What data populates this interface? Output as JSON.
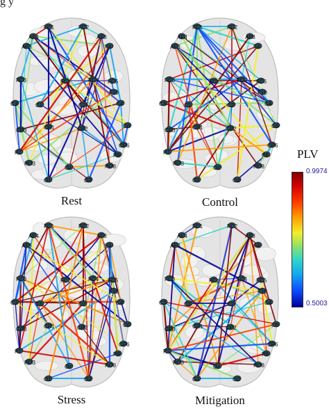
{
  "figure": {
    "top_caption_fragment": "g                                                                    y",
    "panels": [
      {
        "id": "rest",
        "caption": "Rest"
      },
      {
        "id": "control",
        "caption": "Control"
      },
      {
        "id": "stress",
        "caption": "Stress"
      },
      {
        "id": "mitigation",
        "caption": "Mitigation"
      }
    ],
    "colorbar": {
      "title": "PLV",
      "max_label": "0.9974",
      "min_label": "0.5003",
      "colors": [
        "#7f0000",
        "#d40000",
        "#ff3a00",
        "#ff9a00",
        "#f2ee2a",
        "#8ee06a",
        "#2fd6c8",
        "#14a6f0",
        "#0b4cff",
        "#00009a"
      ]
    },
    "electrode_labels": [
      "FC1",
      "FC2",
      "AF4",
      "AF8",
      "AF3",
      "F4",
      "FC3",
      "FCz",
      "FC4",
      "FC6",
      "F10",
      "C3",
      "C1",
      "C2",
      "C4",
      "C6",
      "CP3",
      "CP1",
      "CP2",
      "CP6",
      "PO3",
      "P7",
      "P8",
      "PO8",
      "Oz",
      "O1",
      "O2"
    ]
  }
}
